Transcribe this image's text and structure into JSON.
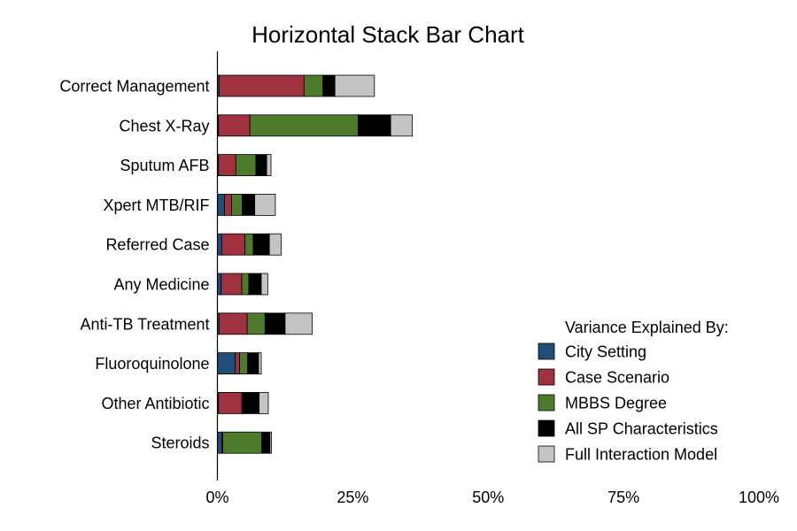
{
  "chart_data": {
    "type": "bar",
    "orientation": "horizontal",
    "stacked": true,
    "title": "Horizontal Stack Bar Chart",
    "xlabel": "",
    "ylabel": "",
    "xlim": [
      0,
      100
    ],
    "x_ticks": [
      0,
      25,
      50,
      75,
      100
    ],
    "x_tick_labels": [
      "0%",
      "25%",
      "50%",
      "75%",
      "100%"
    ],
    "grid": false,
    "legend_position": "bottom-right",
    "legend_title": "Variance Explained By:",
    "categories": [
      "Correct Management",
      "Chest X-Ray",
      "Sputum AFB",
      "Xpert MTB/RIF",
      "Referred Case",
      "Any Medicine",
      "Anti-TB Treatment",
      "Fluoroquinolone",
      "Other Antibiotic",
      "Steroids"
    ],
    "series": [
      {
        "name": "City Setting",
        "color": "#1f4e79",
        "values": [
          0.3,
          0.2,
          0.2,
          1.3,
          0.8,
          0.7,
          0.3,
          3.3,
          0.2,
          0.8
        ]
      },
      {
        "name": "Case Scenario",
        "color": "#a0313f",
        "values": [
          15.7,
          5.8,
          3.2,
          1.3,
          4.3,
          3.8,
          5.2,
          0.8,
          4.3,
          0.2
        ]
      },
      {
        "name": "MBBS Degree",
        "color": "#4e7a2b",
        "values": [
          3.5,
          20.0,
          3.7,
          2.0,
          1.5,
          1.3,
          3.3,
          1.5,
          0.2,
          7.2
        ]
      },
      {
        "name": "All SP Characteristics",
        "color": "#000000",
        "values": [
          2.2,
          6.0,
          2.0,
          2.3,
          3.0,
          2.3,
          3.7,
          2.0,
          3.0,
          1.5
        ]
      },
      {
        "name": "Full Interaction Model",
        "color": "#c4c4c4",
        "values": [
          7.3,
          4.0,
          0.8,
          3.8,
          2.2,
          1.2,
          5.0,
          0.5,
          1.7,
          0.3
        ]
      }
    ]
  }
}
